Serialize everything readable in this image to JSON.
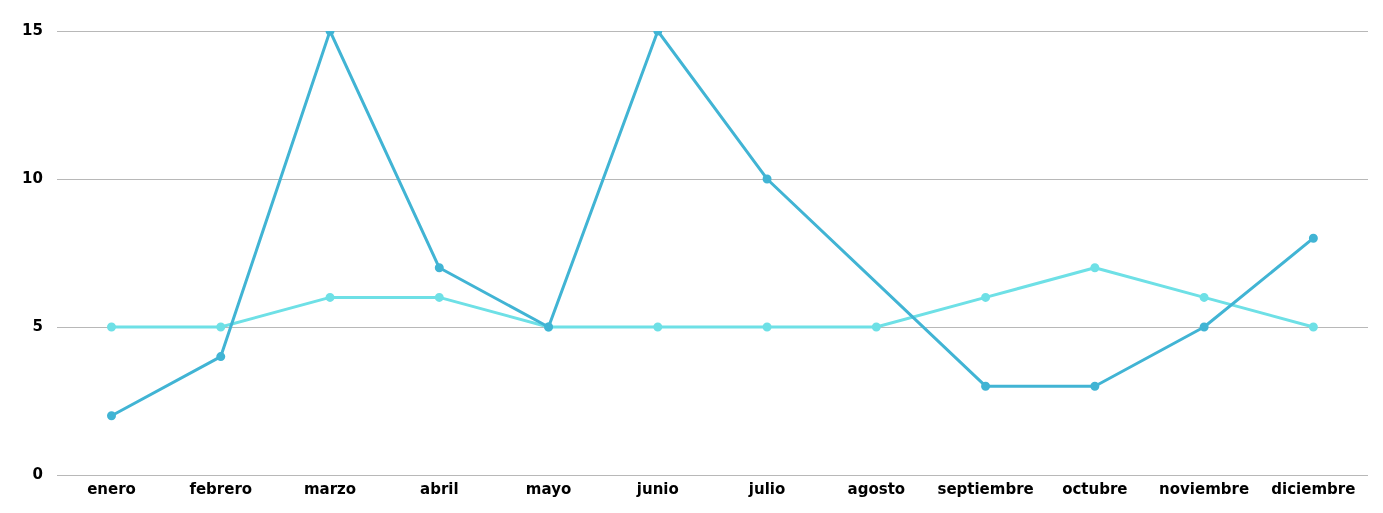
{
  "chart_data": {
    "type": "line",
    "categories": [
      "enero",
      "febrero",
      "marzo",
      "abril",
      "mayo",
      "junio",
      "julio",
      "agosto",
      "septiembre",
      "octubre",
      "noviembre",
      "diciembre"
    ],
    "series": [
      {
        "color": "#6ee0e6",
        "values": [
          5,
          5,
          6,
          6,
          5,
          5,
          5,
          5,
          6,
          7,
          6,
          5
        ]
      },
      {
        "color": "#41b4d4",
        "values": [
          2,
          4,
          15,
          7,
          5,
          15,
          10,
          null,
          3,
          3,
          5,
          8
        ]
      }
    ],
    "ylim": [
      0,
      15
    ],
    "yticks": [
      0,
      5,
      10,
      15
    ],
    "grid": "y",
    "marker": "circle",
    "line_style": "solid"
  }
}
